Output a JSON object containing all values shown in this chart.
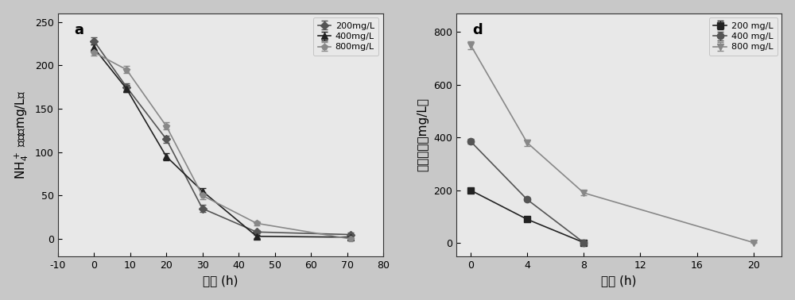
{
  "left_panel": {
    "label": "a",
    "xlabel_ascii": "时间 (h)",
    "ylabel_line1": "NH",
    "ylabel_sub": "4",
    "ylabel_sup": "+",
    "ylabel_line2": "浓度（mg/L）",
    "xlim": [
      -10,
      80
    ],
    "ylim": [
      -20,
      260
    ],
    "xticks": [
      -10,
      0,
      10,
      20,
      30,
      40,
      50,
      60,
      70,
      80
    ],
    "yticks": [
      0,
      50,
      100,
      150,
      200,
      250
    ],
    "series": [
      {
        "label": "200mg/L",
        "x": [
          0,
          9,
          20,
          30,
          45,
          71
        ],
        "y": [
          228,
          175,
          115,
          35,
          8,
          5
        ],
        "yerr": [
          4,
          4,
          4,
          4,
          2,
          2
        ],
        "color": "#555555",
        "marker": "D",
        "markersize": 5,
        "linestyle": "-"
      },
      {
        "label": "400mg/L",
        "x": [
          0,
          9,
          20,
          30,
          45,
          71
        ],
        "y": [
          220,
          173,
          95,
          55,
          3,
          2
        ],
        "yerr": [
          4,
          4,
          4,
          4,
          2,
          2
        ],
        "color": "#222222",
        "marker": "^",
        "markersize": 6,
        "linestyle": "-"
      },
      {
        "label": "800mg/L",
        "x": [
          0,
          9,
          20,
          30,
          45,
          71
        ],
        "y": [
          215,
          195,
          130,
          50,
          18,
          0
        ],
        "yerr": [
          4,
          4,
          4,
          4,
          2,
          2
        ],
        "color": "#888888",
        "marker": "p",
        "markersize": 6,
        "linestyle": "-"
      }
    ]
  },
  "right_panel": {
    "label": "d",
    "xlabel_ascii": "时间 (h)",
    "ylabel_chinese": "苯酚浓度（mg/L）",
    "xlim": [
      -1,
      22
    ],
    "ylim": [
      -50,
      870
    ],
    "xticks": [
      0,
      4,
      8,
      12,
      16,
      20
    ],
    "yticks": [
      0,
      200,
      400,
      600,
      800
    ],
    "series": [
      {
        "label": "200 mg/L",
        "x": [
          0,
          4,
          8
        ],
        "y": [
          200,
          90,
          2
        ],
        "yerr": [
          6,
          6,
          2
        ],
        "color": "#222222",
        "marker": "s",
        "markersize": 6,
        "linestyle": "-"
      },
      {
        "label": "400 mg/L",
        "x": [
          0,
          4,
          8
        ],
        "y": [
          385,
          165,
          2
        ],
        "yerr": [
          8,
          6,
          2
        ],
        "color": "#555555",
        "marker": "o",
        "markersize": 6,
        "linestyle": "-"
      },
      {
        "label": "800 mg/L",
        "x": [
          0,
          4,
          8,
          20
        ],
        "y": [
          750,
          380,
          190,
          2
        ],
        "yerr": [
          15,
          12,
          10,
          2
        ],
        "color": "#888888",
        "marker": "v",
        "markersize": 6,
        "linestyle": "-"
      }
    ]
  },
  "background_color": "#c8c8c8",
  "panel_bg": "#e8e8e8",
  "font_size_label": 11,
  "font_size_tick": 9,
  "font_size_legend": 8,
  "font_size_panel_label": 13
}
